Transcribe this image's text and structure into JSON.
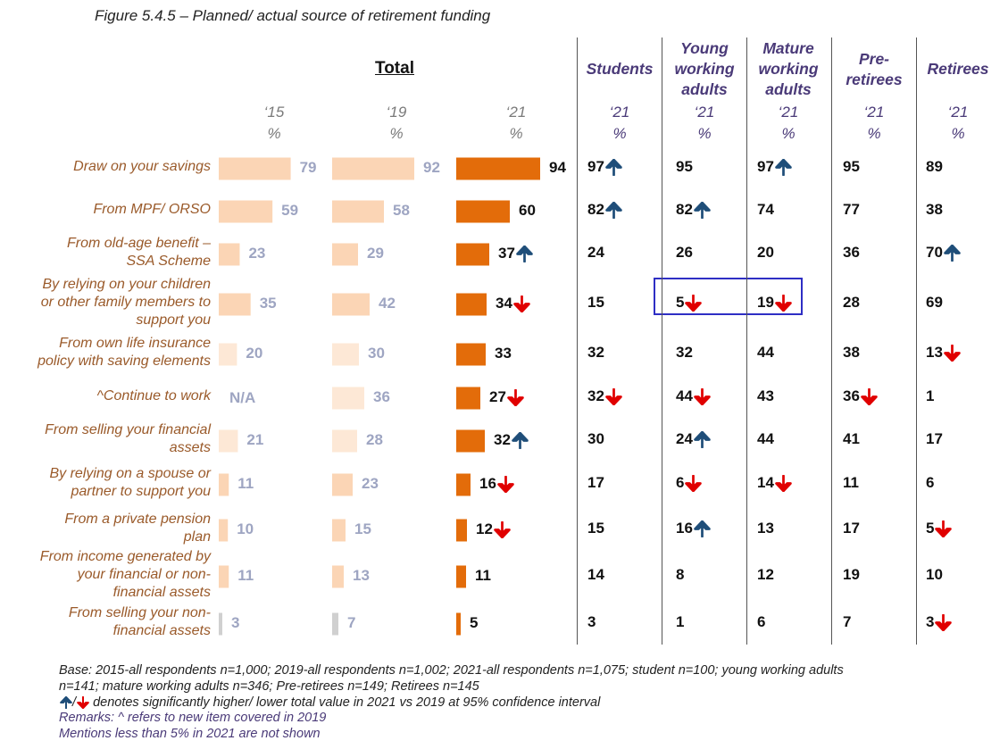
{
  "title": "Figure 5.4.5 – Planned/ actual source of retirement funding",
  "total_label": "Total",
  "columns": {
    "y15": "‘15",
    "y19": "‘19",
    "y21": "‘21",
    "pct": "%",
    "groups": [
      {
        "key": "students",
        "lines": [
          "Students"
        ]
      },
      {
        "key": "young",
        "lines": [
          "Young",
          "working",
          "adults"
        ]
      },
      {
        "key": "mature",
        "lines": [
          "Mature",
          "working",
          "adults"
        ]
      },
      {
        "key": "pre",
        "lines": [
          "Pre-",
          "retirees"
        ]
      },
      {
        "key": "retirees",
        "lines": [
          "Retirees"
        ]
      }
    ]
  },
  "chart_data": {
    "type": "bar",
    "categories": [
      "Draw on your savings",
      "From MPF/ ORSO",
      "From old-age benefit – SSA Scheme",
      "By relying on your children or other family members to support you",
      "From own life insurance policy with saving elements",
      "^Continue to work",
      "From selling your financial assets",
      "By relying on a spouse or partner to support you",
      "From a private pension plan",
      "From income generated by your financial or non-financial assets",
      "From selling your non-financial assets"
    ],
    "series": [
      {
        "name": "‘15",
        "values": [
          79,
          59,
          23,
          35,
          20,
          null,
          21,
          11,
          10,
          11,
          3
        ],
        "na_label": "N/A"
      },
      {
        "name": "‘19",
        "values": [
          92,
          58,
          29,
          42,
          30,
          36,
          28,
          23,
          15,
          13,
          7
        ]
      },
      {
        "name": "‘21",
        "values": [
          94,
          60,
          37,
          34,
          33,
          27,
          32,
          16,
          12,
          11,
          5
        ],
        "significance": [
          "",
          "",
          "up",
          "down",
          "",
          "down",
          "up",
          "down",
          "down",
          "",
          ""
        ]
      }
    ],
    "xlim": [
      0,
      100
    ],
    "colors": {
      "y15": "#fbd5b5",
      "y19": "#fbd5b5",
      "y21": "#e36c0a",
      "grey": "#d0d0d0",
      "up": "#1f4e79",
      "down": "#e00000"
    }
  },
  "table": {
    "students": [
      {
        "v": "97",
        "s": "up"
      },
      {
        "v": "82",
        "s": "up"
      },
      {
        "v": "24",
        "s": ""
      },
      {
        "v": "15",
        "s": ""
      },
      {
        "v": "32",
        "s": ""
      },
      {
        "v": "32",
        "s": "down"
      },
      {
        "v": "30",
        "s": ""
      },
      {
        "v": "17",
        "s": ""
      },
      {
        "v": "15",
        "s": ""
      },
      {
        "v": "14",
        "s": ""
      },
      {
        "v": "3",
        "s": ""
      }
    ],
    "young": [
      {
        "v": "95",
        "s": ""
      },
      {
        "v": "82",
        "s": "up"
      },
      {
        "v": "26",
        "s": ""
      },
      {
        "v": "5",
        "s": "down"
      },
      {
        "v": "32",
        "s": ""
      },
      {
        "v": "44",
        "s": "down"
      },
      {
        "v": "24",
        "s": "up"
      },
      {
        "v": "6",
        "s": "down"
      },
      {
        "v": "16",
        "s": "up"
      },
      {
        "v": "8",
        "s": ""
      },
      {
        "v": "1",
        "s": ""
      }
    ],
    "mature": [
      {
        "v": "97",
        "s": "up"
      },
      {
        "v": "74",
        "s": ""
      },
      {
        "v": "20",
        "s": ""
      },
      {
        "v": "19",
        "s": "down"
      },
      {
        "v": "44",
        "s": ""
      },
      {
        "v": "43",
        "s": ""
      },
      {
        "v": "44",
        "s": ""
      },
      {
        "v": "14",
        "s": "down"
      },
      {
        "v": "13",
        "s": ""
      },
      {
        "v": "12",
        "s": ""
      },
      {
        "v": "6",
        "s": ""
      }
    ],
    "pre": [
      {
        "v": "95",
        "s": ""
      },
      {
        "v": "77",
        "s": ""
      },
      {
        "v": "36",
        "s": ""
      },
      {
        "v": "28",
        "s": ""
      },
      {
        "v": "38",
        "s": ""
      },
      {
        "v": "36",
        "s": "down"
      },
      {
        "v": "41",
        "s": ""
      },
      {
        "v": "11",
        "s": ""
      },
      {
        "v": "17",
        "s": ""
      },
      {
        "v": "19",
        "s": ""
      },
      {
        "v": "7",
        "s": ""
      }
    ],
    "retirees": [
      {
        "v": "89",
        "s": ""
      },
      {
        "v": "38",
        "s": ""
      },
      {
        "v": "70",
        "s": "up"
      },
      {
        "v": "69",
        "s": ""
      },
      {
        "v": "13",
        "s": "down"
      },
      {
        "v": "1",
        "s": ""
      },
      {
        "v": "17",
        "s": ""
      },
      {
        "v": "6",
        "s": ""
      },
      {
        "v": "5",
        "s": "down"
      },
      {
        "v": "10",
        "s": ""
      },
      {
        "v": "3",
        "s": "down"
      }
    ]
  },
  "footnotes": {
    "base_line1": "Base: 2015-all respondents n=1,000; 2019-all respondents n=1,002; 2021-all respondents n=1,075; student n=100; young working adults",
    "base_line2": "n=141; mature working adults n=346; Pre-retirees n=149; Retirees n=145",
    "sig_legend": "denotes significantly higher/ lower total value in 2021 vs 2019 at 95% confidence interval",
    "remarks1": "Remarks: ^ refers to new item covered in 2019",
    "remarks2": " Mentions less than 5% in 2021 are not shown"
  }
}
